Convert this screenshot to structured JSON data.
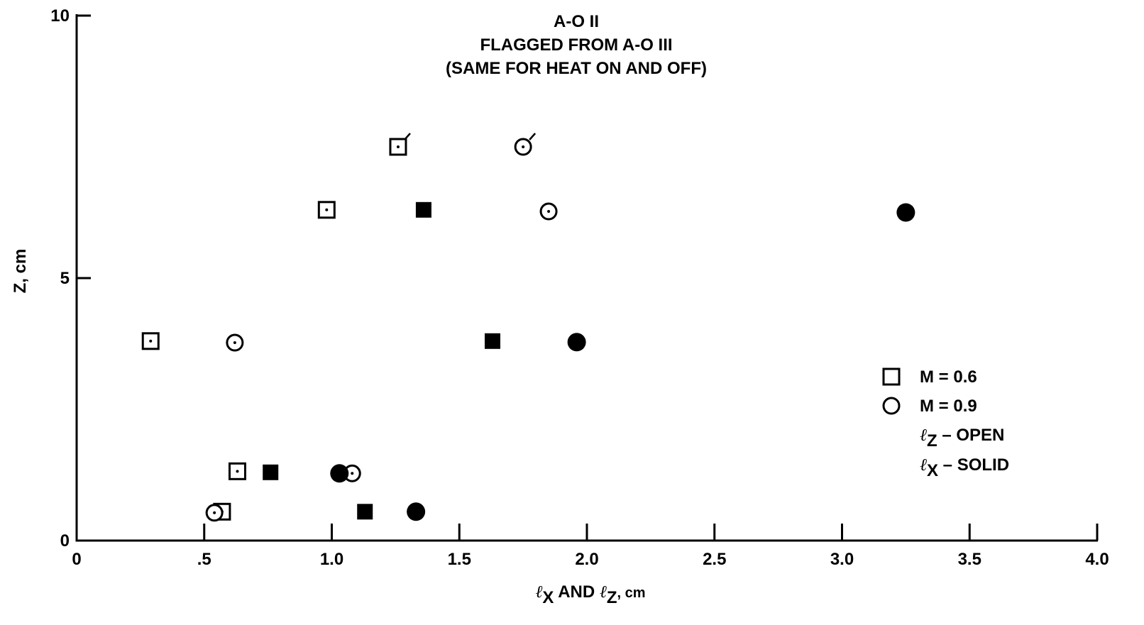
{
  "chart_data": {
    "type": "scatter",
    "title": [
      "A-O II",
      "FLAGGED FROM A-O III",
      "(SAME FOR HEAT ON AND OFF)"
    ],
    "xlabel": {
      "l1": "ℓ",
      "s1": "X",
      "mid": " AND ",
      "l2": "ℓ",
      "s2": "Z",
      "end": ", cm"
    },
    "ylabel": "Z, cm",
    "xlim": [
      0,
      4.0
    ],
    "ylim": [
      0,
      10
    ],
    "xticks": [
      {
        "v": 0,
        "label": "0"
      },
      {
        "v": 0.5,
        "label": ".5"
      },
      {
        "v": 1.0,
        "label": "1.0"
      },
      {
        "v": 1.5,
        "label": "1.5"
      },
      {
        "v": 2.0,
        "label": "2.0"
      },
      {
        "v": 2.5,
        "label": "2.5"
      },
      {
        "v": 3.0,
        "label": "3.0"
      },
      {
        "v": 3.5,
        "label": "3.5"
      },
      {
        "v": 4.0,
        "label": "4.0"
      }
    ],
    "yticks": [
      {
        "v": 0,
        "label": "0"
      },
      {
        "v": 5,
        "label": "5"
      },
      {
        "v": 10,
        "label": "10"
      }
    ],
    "grid": false,
    "legend_position": "right",
    "legend": [
      {
        "marker": "square-open",
        "text": "M = 0.6"
      },
      {
        "marker": "circle-open",
        "text": "M = 0.9"
      },
      {
        "marker": "none",
        "ell": "ℓ",
        "sub": "Z",
        "text": " – OPEN"
      },
      {
        "marker": "none",
        "ell": "ℓ",
        "sub": "X",
        "text": " – SOLID"
      }
    ],
    "series": [
      {
        "marker": "square",
        "filled": false,
        "points": [
          {
            "x": 0.29,
            "y": 3.8,
            "flag": false
          },
          {
            "x": 0.57,
            "y": 0.55,
            "flag": false
          },
          {
            "x": 0.63,
            "y": 1.32,
            "flag": false
          },
          {
            "x": 0.98,
            "y": 6.3,
            "flag": false
          },
          {
            "x": 1.26,
            "y": 7.5,
            "flag": true
          }
        ]
      },
      {
        "marker": "square",
        "filled": true,
        "points": [
          {
            "x": 0.76,
            "y": 1.3
          },
          {
            "x": 1.13,
            "y": 0.55
          },
          {
            "x": 1.36,
            "y": 6.3
          },
          {
            "x": 1.63,
            "y": 3.8
          }
        ]
      },
      {
        "marker": "circle",
        "filled": false,
        "points": [
          {
            "x": 0.54,
            "y": 0.53,
            "flag": false
          },
          {
            "x": 0.62,
            "y": 3.77,
            "flag": false
          },
          {
            "x": 1.08,
            "y": 1.28,
            "flag": false
          },
          {
            "x": 1.75,
            "y": 7.5,
            "flag": true
          },
          {
            "x": 1.85,
            "y": 6.27,
            "flag": false
          }
        ]
      },
      {
        "marker": "circle",
        "filled": true,
        "points": [
          {
            "x": 1.03,
            "y": 1.28
          },
          {
            "x": 1.33,
            "y": 0.55
          },
          {
            "x": 1.96,
            "y": 3.78
          },
          {
            "x": 3.25,
            "y": 6.25
          }
        ]
      }
    ]
  }
}
